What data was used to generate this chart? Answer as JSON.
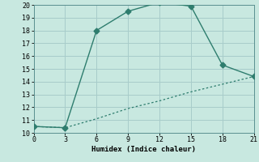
{
  "xlabel": "Humidex (Indice chaleur)",
  "line1_x": [
    0,
    3,
    6,
    9,
    12,
    15,
    18,
    21
  ],
  "line1_y": [
    10.5,
    10.4,
    18.0,
    19.5,
    20.2,
    19.9,
    15.3,
    14.4
  ],
  "line2_x": [
    0,
    3,
    6,
    9,
    12,
    15,
    18,
    21
  ],
  "line2_y": [
    10.5,
    10.4,
    11.1,
    11.9,
    12.5,
    13.2,
    13.8,
    14.4
  ],
  "line_color": "#2E7D6E",
  "bg_color": "#C8E8E0",
  "grid_color": "#A8CCCA",
  "xlim": [
    0,
    21
  ],
  "ylim": [
    10,
    20
  ],
  "xticks": [
    0,
    3,
    6,
    9,
    12,
    15,
    18,
    21
  ],
  "yticks": [
    10,
    11,
    12,
    13,
    14,
    15,
    16,
    17,
    18,
    19,
    20
  ],
  "markersize": 3.5
}
